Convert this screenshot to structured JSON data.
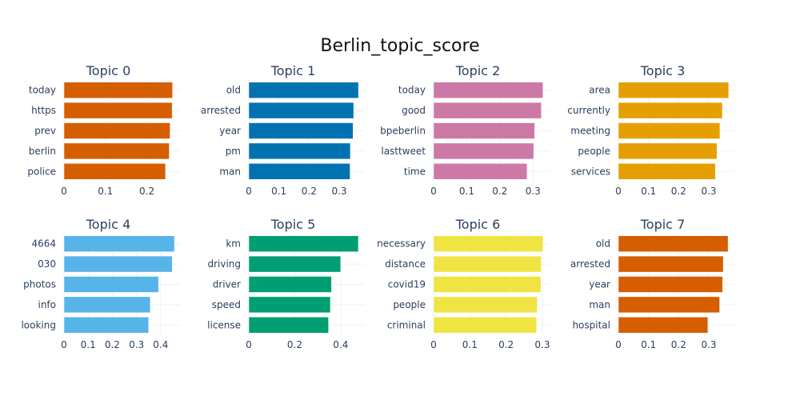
{
  "chart_data": {
    "title": "Berlin_topic_score",
    "type": "bar",
    "orientation": "horizontal",
    "grid": true,
    "subplots": [
      {
        "title": "Topic 0",
        "color": "#D55E00",
        "categories": [
          "today",
          "https",
          "prev",
          "berlin",
          "police"
        ],
        "values": [
          0.262,
          0.261,
          0.256,
          0.254,
          0.245
        ],
        "xlim": [
          0,
          0.28
        ],
        "xticks": [
          0,
          0.1,
          0.2
        ],
        "xtick_labels": [
          "0",
          "0.1",
          "0.2"
        ]
      },
      {
        "title": "Topic 1",
        "color": "#0072B2",
        "categories": [
          "old",
          "arrested",
          "year",
          "pm",
          "man"
        ],
        "values": [
          0.364,
          0.348,
          0.346,
          0.337,
          0.336
        ],
        "xlim": [
          0,
          0.385
        ],
        "xticks": [
          0,
          0.1,
          0.2,
          0.3
        ],
        "xtick_labels": [
          "0",
          "0.1",
          "0.2",
          "0.3"
        ]
      },
      {
        "title": "Topic 2",
        "color": "#CC79A7",
        "categories": [
          "today",
          "good",
          "bpeberlin",
          "lasttweet",
          "time"
        ],
        "values": [
          0.33,
          0.325,
          0.305,
          0.302,
          0.282
        ],
        "xlim": [
          0,
          0.35
        ],
        "xticks": [
          0,
          0.1,
          0.2,
          0.3
        ],
        "xtick_labels": [
          "0",
          "0.1",
          "0.2",
          "0.3"
        ]
      },
      {
        "title": "Topic 3",
        "color": "#E69F00",
        "categories": [
          "area",
          "currently",
          "meeting",
          "people",
          "services"
        ],
        "values": [
          0.366,
          0.345,
          0.337,
          0.327,
          0.322
        ],
        "xlim": [
          0,
          0.385
        ],
        "xticks": [
          0,
          0.1,
          0.2,
          0.3
        ],
        "xtick_labels": [
          "0",
          "0.1",
          "0.2",
          "0.3"
        ]
      },
      {
        "title": "Topic 4",
        "color": "#56B4E9",
        "categories": [
          "4664",
          "030",
          "photos",
          "info",
          "looking"
        ],
        "values": [
          0.457,
          0.448,
          0.391,
          0.357,
          0.35
        ],
        "xlim": [
          0,
          0.48
        ],
        "xticks": [
          0,
          0.1,
          0.2,
          0.3,
          0.4
        ],
        "xtick_labels": [
          "0",
          "0.1",
          "0.2",
          "0.3",
          "0.4"
        ]
      },
      {
        "title": "Topic 5",
        "color": "#009E73",
        "categories": [
          "km",
          "driving",
          "driver",
          "speed",
          "license"
        ],
        "values": [
          0.477,
          0.4,
          0.36,
          0.355,
          0.347
        ],
        "xlim": [
          0,
          0.505
        ],
        "xticks": [
          0,
          0.2,
          0.4
        ],
        "xtick_labels": [
          "0",
          "0.2",
          "0.4"
        ]
      },
      {
        "title": "Topic 6",
        "color": "#F0E442",
        "categories": [
          "necessary",
          "distance",
          "covid19",
          "people",
          "criminal"
        ],
        "values": [
          0.302,
          0.297,
          0.296,
          0.286,
          0.284
        ],
        "xlim": [
          0,
          0.32
        ],
        "xticks": [
          0,
          0.1,
          0.2,
          0.3
        ],
        "xtick_labels": [
          "0",
          "0.1",
          "0.2",
          "0.3"
        ]
      },
      {
        "title": "Topic 7",
        "color": "#D55E00",
        "categories": [
          "old",
          "arrested",
          "year",
          "man",
          "hospital"
        ],
        "values": [
          0.364,
          0.348,
          0.346,
          0.336,
          0.297
        ],
        "xlim": [
          0,
          0.385
        ],
        "xticks": [
          0,
          0.1,
          0.2,
          0.3
        ],
        "xtick_labels": [
          "0",
          "0.1",
          "0.2",
          "0.3"
        ]
      }
    ]
  }
}
